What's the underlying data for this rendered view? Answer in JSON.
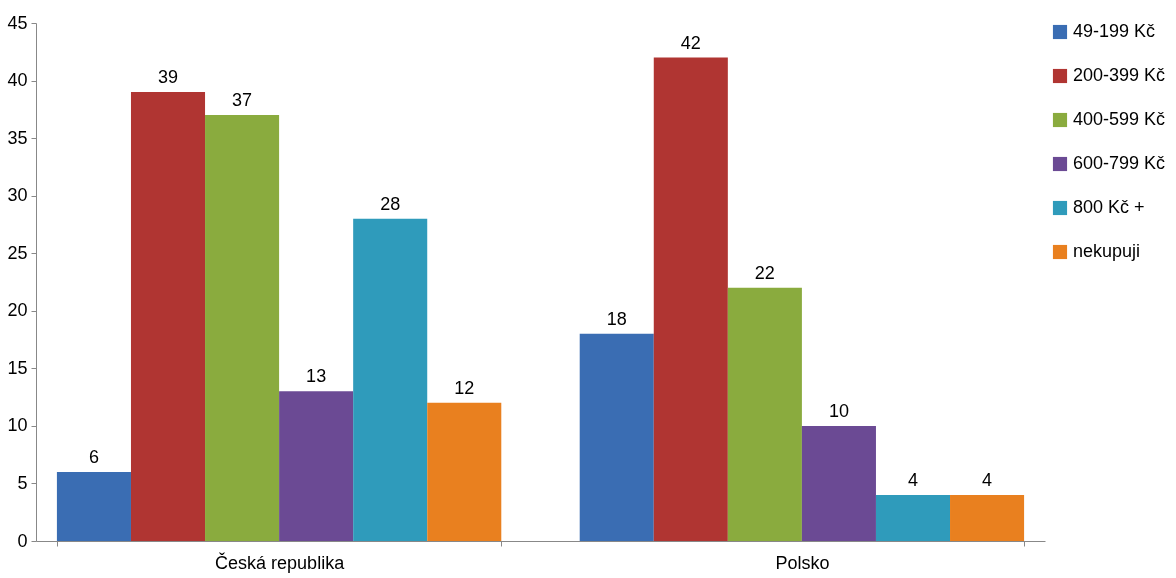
{
  "chart_data": {
    "type": "bar",
    "categories": [
      "Česká republika",
      "Polsko"
    ],
    "series": [
      {
        "name": "49-199 Kč",
        "color": "#3a6db3",
        "values": [
          6,
          18
        ]
      },
      {
        "name": "200-399 Kč",
        "color": "#b03532",
        "values": [
          39,
          42
        ]
      },
      {
        "name": "400-599 Kč",
        "color": "#8aab3e",
        "values": [
          37,
          22
        ]
      },
      {
        "name": "600-799 Kč",
        "color": "#6b4a94",
        "values": [
          13,
          10
        ]
      },
      {
        "name": "800 Kč +",
        "color": "#2f9bbb",
        "values": [
          28,
          4
        ]
      },
      {
        "name": "nekupuji",
        "color": "#e9801f",
        "values": [
          12,
          4
        ]
      }
    ],
    "ylim": [
      0,
      45
    ],
    "yticks": [
      0,
      5,
      10,
      15,
      20,
      25,
      30,
      35,
      40,
      45
    ],
    "grid": false,
    "legend": "right",
    "data_labels": true
  }
}
